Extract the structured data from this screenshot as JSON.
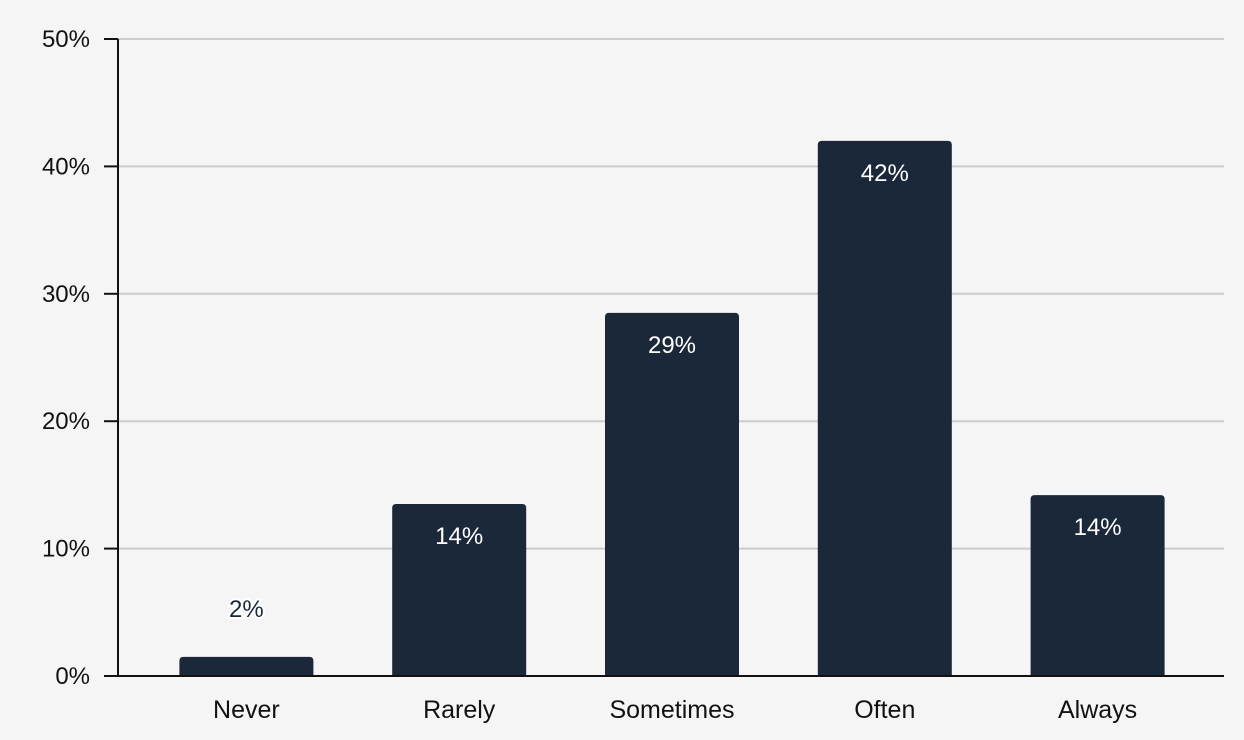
{
  "chart_data": {
    "type": "bar",
    "title": "",
    "xlabel": "",
    "ylabel": "",
    "categories": [
      "Never",
      "Rarely",
      "Sometimes",
      "Often",
      "Always"
    ],
    "values": [
      1.5,
      13.5,
      28.5,
      42,
      14.2
    ],
    "data_labels": [
      "2%",
      "14%",
      "29%",
      "42%",
      "14%"
    ],
    "ylim": [
      0,
      50
    ],
    "y_ticks": [
      0,
      10,
      20,
      30,
      40,
      50
    ],
    "y_tick_labels": [
      "0%",
      "10%",
      "20%",
      "30%",
      "40%",
      "50%"
    ],
    "grid": true,
    "legend": "none",
    "colors": {
      "bar": "#1a2839",
      "grid": "#cccccc",
      "axis": "#111111",
      "background": "#f5f5f5",
      "label_inside": "#ffffff",
      "label_outside": "#1a2839"
    }
  }
}
